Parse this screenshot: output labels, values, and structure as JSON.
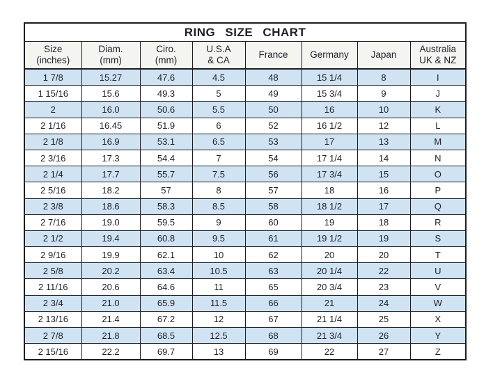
{
  "page_title": "RING SIZE CHART",
  "colors": {
    "row_alt_blue": "#cfe3f3",
    "header_bg": "#f4f4f1",
    "border": "#1c1c22",
    "text": "#1f2028",
    "background": "#ffffff"
  },
  "chart_data": {
    "type": "table",
    "title": "RING SIZE CHART",
    "columns": [
      "Size\n(inches)",
      "Diam.\n(mm)",
      "Ciro.\n(mm)",
      "U.S.A\n& CA",
      "France",
      "Germany",
      "Japan",
      "Australia\nUK & NZ"
    ],
    "rows": [
      [
        "1 7/8",
        "15.27",
        "47.6",
        "4.5",
        "48",
        "15 1/4",
        "8",
        "I"
      ],
      [
        "1 15/16",
        "15.6",
        "49.3",
        "5",
        "49",
        "15 3/4",
        "9",
        "J"
      ],
      [
        "2",
        "16.0",
        "50.6",
        "5.5",
        "50",
        "16",
        "10",
        "K"
      ],
      [
        "2 1/16",
        "16.45",
        "51.9",
        "6",
        "52",
        "16 1/2",
        "12",
        "L"
      ],
      [
        "2 1/8",
        "16.9",
        "53.1",
        "6.5",
        "53",
        "17",
        "13",
        "M"
      ],
      [
        "2 3/16",
        "17.3",
        "54.4",
        "7",
        "54",
        "17 1/4",
        "14",
        "N"
      ],
      [
        "2 1/4",
        "17.7",
        "55.7",
        "7.5",
        "56",
        "17 3/4",
        "15",
        "O"
      ],
      [
        "2 5/16",
        "18.2",
        "57",
        "8",
        "57",
        "18",
        "16",
        "P"
      ],
      [
        "2 3/8",
        "18.6",
        "58.3",
        "8.5",
        "58",
        "18 1/2",
        "17",
        "Q"
      ],
      [
        "2 7/16",
        "19.0",
        "59.5",
        "9",
        "60",
        "19",
        "18",
        "R"
      ],
      [
        "2 1/2",
        "19.4",
        "60.8",
        "9.5",
        "61",
        "19 1/2",
        "19",
        "S"
      ],
      [
        "2 9/16",
        "19.9",
        "62.1",
        "10",
        "62",
        "20",
        "20",
        "T"
      ],
      [
        "2 5/8",
        "20.2",
        "63.4",
        "10.5",
        "63",
        "20 1/4",
        "22",
        "U"
      ],
      [
        "2 11/16",
        "20.6",
        "64.6",
        "11",
        "65",
        "20 3/4",
        "23",
        "V"
      ],
      [
        "2 3/4",
        "21.0",
        "65.9",
        "11.5",
        "66",
        "21",
        "24",
        "W"
      ],
      [
        "2 13/16",
        "21.4",
        "67.2",
        "12",
        "67",
        "21 1/4",
        "25",
        "X"
      ],
      [
        "2 7/8",
        "21.8",
        "68.5",
        "12.5",
        "68",
        "21 3/4",
        "26",
        "Y"
      ],
      [
        "2 15/16",
        "22.2",
        "69.7",
        "13",
        "69",
        "22",
        "27",
        "Z"
      ]
    ]
  }
}
